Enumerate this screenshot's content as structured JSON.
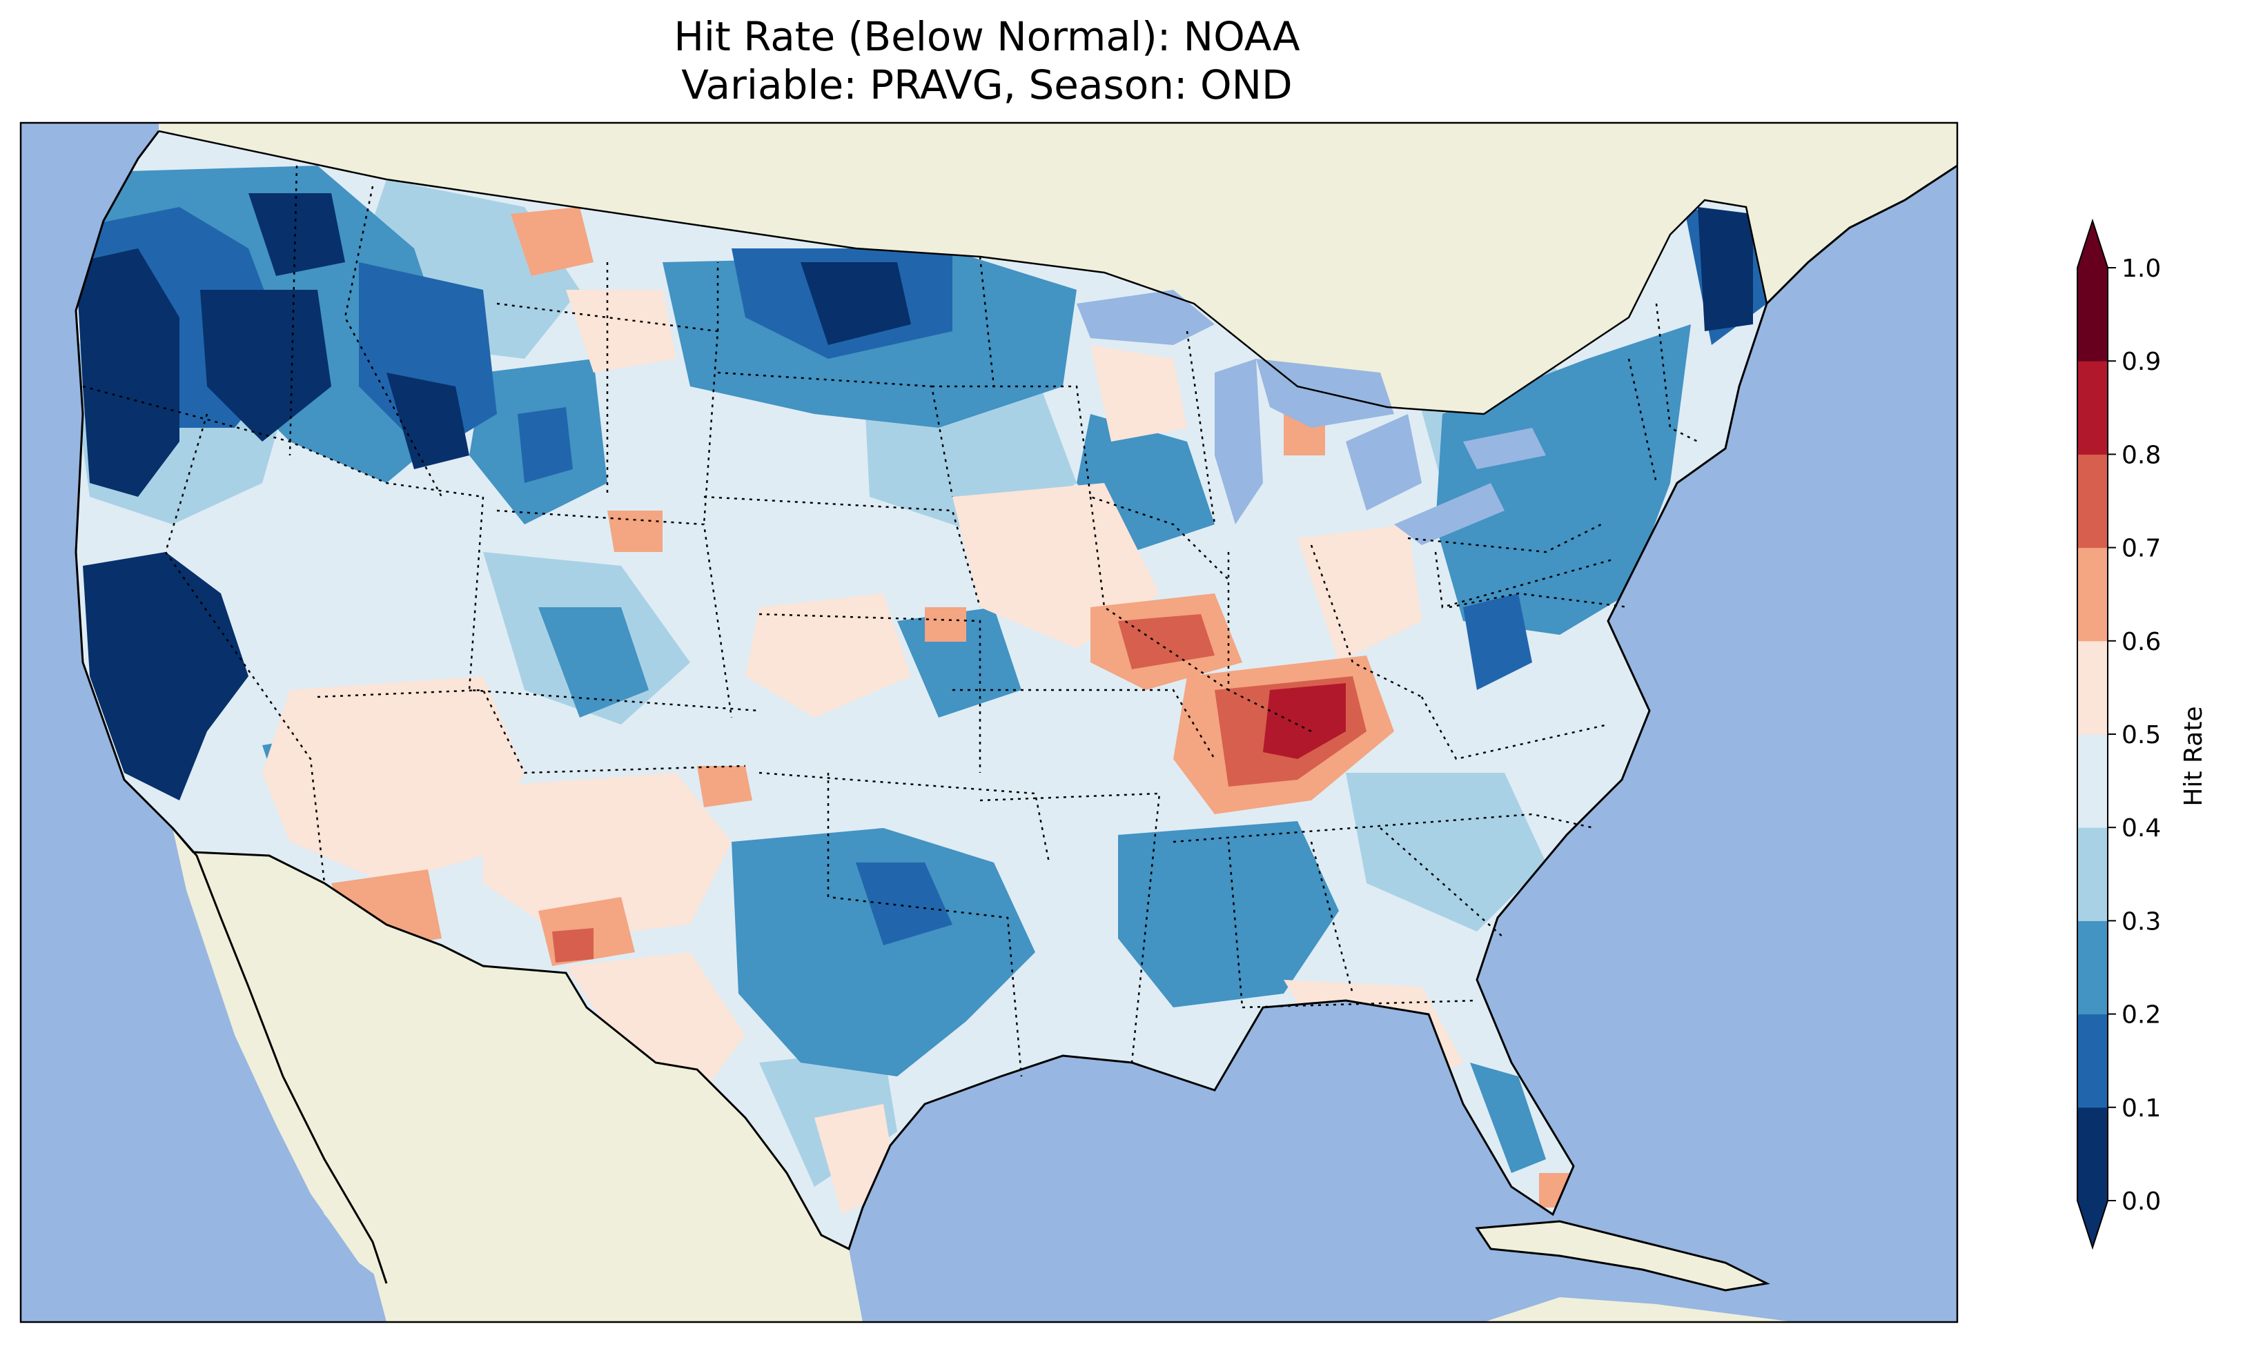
{
  "title": {
    "line1": "Hit Rate (Below Normal): NOAA",
    "line2": "Variable: PRAVG, Season: OND"
  },
  "colorbar": {
    "label": "Hit Rate",
    "ticks": [
      "0.0",
      "0.1",
      "0.2",
      "0.3",
      "0.4",
      "0.5",
      "0.6",
      "0.7",
      "0.8",
      "0.9",
      "1.0"
    ],
    "bins": [
      {
        "from": 0.0,
        "to": 0.1,
        "color": "#08306b"
      },
      {
        "from": 0.1,
        "to": 0.2,
        "color": "#2166ac"
      },
      {
        "from": 0.2,
        "to": 0.3,
        "color": "#4393c3"
      },
      {
        "from": 0.3,
        "to": 0.4,
        "color": "#a9d1e5"
      },
      {
        "from": 0.4,
        "to": 0.5,
        "color": "#dfecf4"
      },
      {
        "from": 0.5,
        "to": 0.6,
        "color": "#fbe4d8"
      },
      {
        "from": 0.6,
        "to": 0.7,
        "color": "#f4a582"
      },
      {
        "from": 0.7,
        "to": 0.8,
        "color": "#d6604d"
      },
      {
        "from": 0.8,
        "to": 0.9,
        "color": "#b2182b"
      },
      {
        "from": 0.9,
        "to": 1.0,
        "color": "#67001f"
      }
    ],
    "extend": "both"
  },
  "map": {
    "ocean_color": "#97b6e1",
    "land_color": "#efefdb",
    "border_style": "dotted"
  }
}
